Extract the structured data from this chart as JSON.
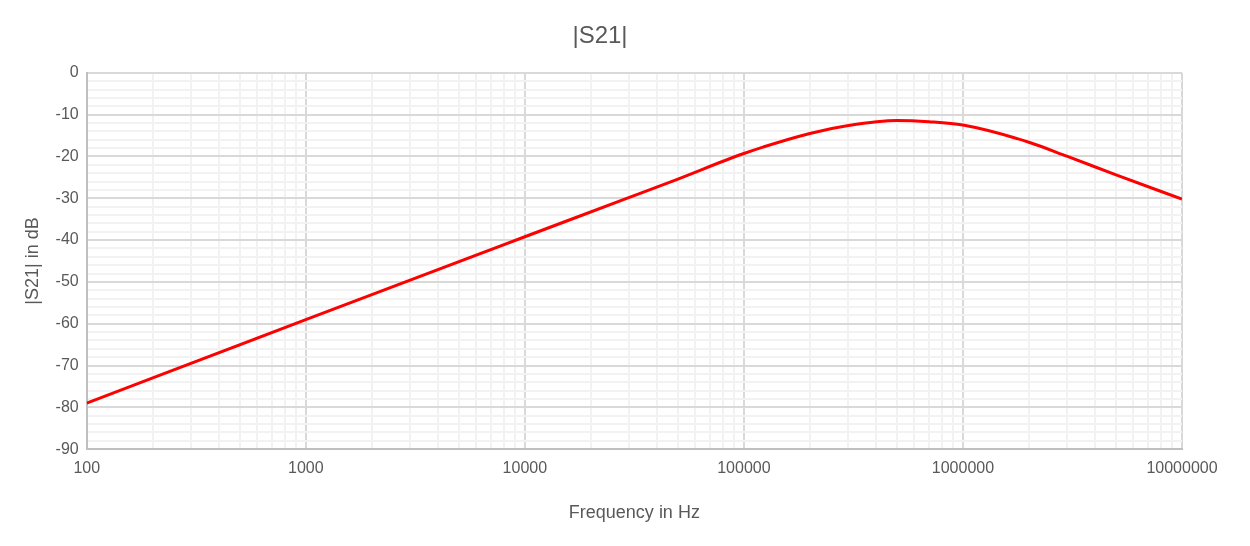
{
  "chart_data": {
    "type": "line",
    "title": "|S21|",
    "xlabel": "Frequency in Hz",
    "ylabel": "|S21| in dB",
    "log": "x",
    "grid": true,
    "legend": false,
    "marker": "none",
    "line_style": "solid",
    "x": [
      100,
      1000,
      10000,
      30000,
      50000,
      100000,
      200000,
      300000,
      500000,
      700000,
      1000000,
      2000000,
      3000000,
      5000000,
      10000000
    ],
    "series": [
      {
        "color": "#ff0000",
        "values": [
          -79,
          -59,
          -39.2,
          -29.8,
          -25.4,
          -19.3,
          -14.5,
          -12.6,
          -11.4,
          -11.7,
          -12.5,
          -16.6,
          -20,
          -24.4,
          -30.2
        ]
      }
    ],
    "xlim": [
      100,
      10000000
    ],
    "xticks": [
      100,
      {
        "value": 200,
        "label": null
      },
      {
        "value": 300,
        "label": null
      },
      {
        "value": 400,
        "label": null
      },
      {
        "value": 500,
        "label": null
      },
      {
        "value": 600,
        "label": null
      },
      {
        "value": 700,
        "label": null
      },
      {
        "value": 800,
        "label": null
      },
      {
        "value": 900,
        "label": null
      },
      1000,
      {
        "value": 2000,
        "label": null
      },
      {
        "value": 3000,
        "label": null
      },
      {
        "value": 4000,
        "label": null
      },
      {
        "value": 5000,
        "label": null
      },
      {
        "value": 6000,
        "label": null
      },
      {
        "value": 7000,
        "label": null
      },
      {
        "value": 8000,
        "label": null
      },
      {
        "value": 9000,
        "label": null
      },
      10000,
      {
        "value": 20000,
        "label": null
      },
      {
        "value": 30000,
        "label": null
      },
      {
        "value": 40000,
        "label": null
      },
      {
        "value": 50000,
        "label": null
      },
      {
        "value": 60000,
        "label": null
      },
      {
        "value": 70000,
        "label": null
      },
      {
        "value": 80000,
        "label": null
      },
      {
        "value": 90000,
        "label": null
      },
      100000,
      {
        "value": 200000,
        "label": null
      },
      {
        "value": 300000,
        "label": null
      },
      {
        "value": 400000,
        "label": null
      },
      {
        "value": 500000,
        "label": null
      },
      {
        "value": 600000,
        "label": null
      },
      {
        "value": 700000,
        "label": null
      },
      {
        "value": 800000,
        "label": null
      },
      {
        "value": 900000,
        "label": null
      },
      1000000,
      {
        "value": 2000000,
        "label": null
      },
      {
        "value": 3000000,
        "label": null
      },
      {
        "value": 4000000,
        "label": null
      },
      {
        "value": 5000000,
        "label": null
      },
      {
        "value": 6000000,
        "label": null
      },
      {
        "value": 7000000,
        "label": null
      },
      {
        "value": 8000000,
        "label": null
      },
      {
        "value": 9000000,
        "label": null
      },
      10000000
    ],
    "ylim": [
      -90,
      0
    ],
    "yticks": [
      -90,
      {
        "value": -88,
        "label": null
      },
      {
        "value": -86,
        "label": null
      },
      {
        "value": -84,
        "label": null
      },
      {
        "value": -82,
        "label": null
      },
      -80,
      {
        "value": -78,
        "label": null
      },
      {
        "value": -76,
        "label": null
      },
      {
        "value": -74,
        "label": null
      },
      {
        "value": -72,
        "label": null
      },
      -70,
      {
        "value": -68,
        "label": null
      },
      {
        "value": -66,
        "label": null
      },
      {
        "value": -64,
        "label": null
      },
      {
        "value": -62,
        "label": null
      },
      -60,
      {
        "value": -58,
        "label": null
      },
      {
        "value": -56,
        "label": null
      },
      {
        "value": -54,
        "label": null
      },
      {
        "value": -52,
        "label": null
      },
      -50,
      {
        "value": -48,
        "label": null
      },
      {
        "value": -46,
        "label": null
      },
      {
        "value": -44,
        "label": null
      },
      {
        "value": -42,
        "label": null
      },
      -40,
      {
        "value": -38,
        "label": null
      },
      {
        "value": -36,
        "label": null
      },
      {
        "value": -34,
        "label": null
      },
      {
        "value": -32,
        "label": null
      },
      -30,
      {
        "value": -28,
        "label": null
      },
      {
        "value": -26,
        "label": null
      },
      {
        "value": -24,
        "label": null
      },
      {
        "value": -22,
        "label": null
      },
      -20,
      {
        "value": -18,
        "label": null
      },
      {
        "value": -16,
        "label": null
      },
      {
        "value": -14,
        "label": null
      },
      {
        "value": -12,
        "label": null
      },
      -10,
      {
        "value": -8,
        "label": null
      },
      {
        "value": -6,
        "label": null
      },
      {
        "value": -4,
        "label": null
      },
      {
        "value": -2,
        "label": null
      },
      0
    ]
  }
}
